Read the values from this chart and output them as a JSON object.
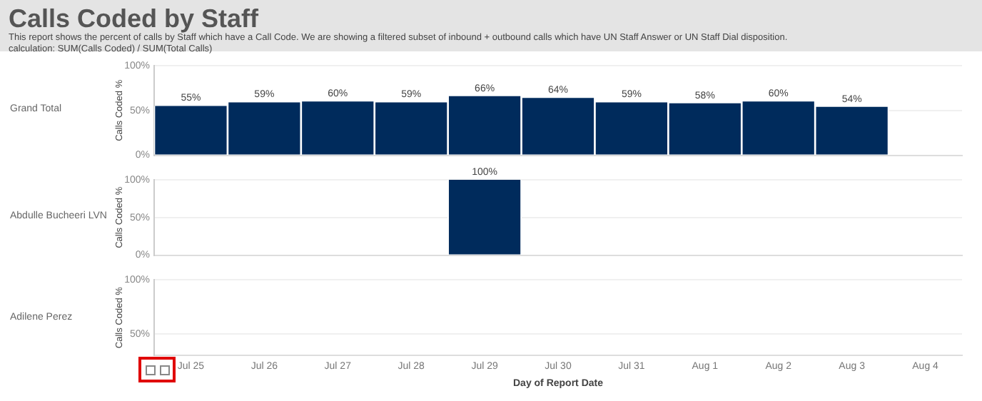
{
  "chart_data": [
    {
      "type": "other",
      "title": "Calls Coded by Staff",
      "subtitle": "This report shows the percent of calls by Staff which have a Call Code.  We are showing a filtered subset of inbound + outbound calls which have UN Staff Answer or UN Staff Dial disposition.",
      "annotations": [
        "calculation: SUM(Calls Coded) / SUM(Total Calls)"
      ]
    },
    {
      "type": "bar",
      "annotations": [
        "Grand Total"
      ],
      "ylabel": "Calls Coded %",
      "color": "#002b5c",
      "categories": [
        null,
        null,
        null,
        null,
        null,
        null,
        null,
        null,
        null,
        null,
        null
      ],
      "values": [
        55,
        59,
        60,
        59,
        66,
        64,
        59,
        58,
        60,
        54,
        null
      ],
      "value_labels": [
        "55%",
        "59%",
        "60%",
        "59%",
        "66%",
        "64%",
        "59%",
        "58%",
        "60%",
        "54%",
        null
      ],
      "ylim": [
        0,
        100
      ],
      "yticks": [
        {
          "value": 0,
          "label": "0%"
        },
        {
          "value": 50,
          "label": "50%"
        },
        {
          "value": 100,
          "label": "100%"
        }
      ],
      "grid": "y",
      "tick_labels": "y"
    },
    {
      "type": "bar",
      "annotations": [
        "Abdulle Bucheeri LVN"
      ],
      "ylabel": "Calls Coded %",
      "color": "#002b5c",
      "categories": [
        null,
        null,
        null,
        null,
        null,
        null,
        null,
        null,
        null,
        null,
        null
      ],
      "values": [
        null,
        null,
        null,
        null,
        100,
        null,
        null,
        null,
        null,
        null,
        null
      ],
      "value_labels": [
        null,
        null,
        null,
        null,
        "100%",
        null,
        null,
        null,
        null,
        null,
        null
      ],
      "ylim": [
        0,
        100
      ],
      "yticks": [
        {
          "value": 0,
          "label": "0%"
        },
        {
          "value": 50,
          "label": "50%"
        },
        {
          "value": 100,
          "label": "100%"
        }
      ],
      "grid": "y",
      "tick_labels": "y"
    },
    {
      "type": "bar",
      "annotations": [
        "Adilene Perez"
      ],
      "ylabel": "Calls Coded %",
      "xlabel": "Day of Report Date",
      "color": "#002b5c",
      "categories": [
        "Jul 25",
        "Jul 26",
        "Jul 27",
        "Jul 28",
        "Jul 29",
        "Jul 30",
        "Jul 31",
        "Aug 1",
        "Aug 2",
        "Aug 3",
        "Aug 4"
      ],
      "values": [
        null,
        null,
        null,
        null,
        null,
        null,
        null,
        null,
        null,
        null,
        null
      ],
      "ylim": [
        30,
        100
      ],
      "yticks": [
        {
          "value": 50,
          "label": "50%"
        },
        {
          "value": 100,
          "label": "100%"
        }
      ],
      "grid": "y"
    }
  ]
}
